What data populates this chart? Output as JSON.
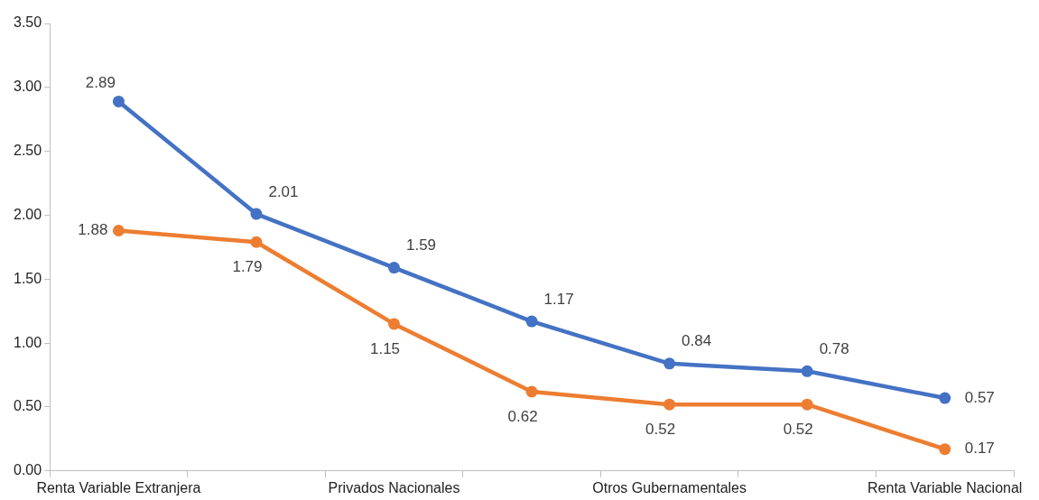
{
  "chart_data": {
    "type": "line",
    "categories": [
      "Renta Variable Extranjera",
      null,
      "Privados Nacionales",
      null,
      "Otros Gubernamentales",
      null,
      "Renta Variable Nacional"
    ],
    "series": [
      {
        "color": "#4472c4",
        "values": [
          2.89,
          2.01,
          1.59,
          1.17,
          0.84,
          0.78,
          0.57
        ]
      },
      {
        "color": "#ed7d31",
        "values": [
          1.88,
          1.79,
          1.15,
          0.62,
          0.52,
          0.52,
          0.17
        ]
      }
    ],
    "ylim": [
      0,
      3.5
    ],
    "yticks": [
      {
        "value": 0,
        "label": "0.00"
      },
      {
        "value": 0.5,
        "label": "0.50"
      },
      {
        "value": 1,
        "label": "1.00"
      },
      {
        "value": 1.5,
        "label": "1.50"
      },
      {
        "value": 2,
        "label": "2.00"
      },
      {
        "value": 2.5,
        "label": "2.50"
      },
      {
        "value": 3,
        "label": "3.00"
      },
      {
        "value": 3.5,
        "label": "3.50"
      }
    ],
    "grid": false,
    "legend": false,
    "marker": "circle",
    "line_style": "solid",
    "data_labels": true
  }
}
